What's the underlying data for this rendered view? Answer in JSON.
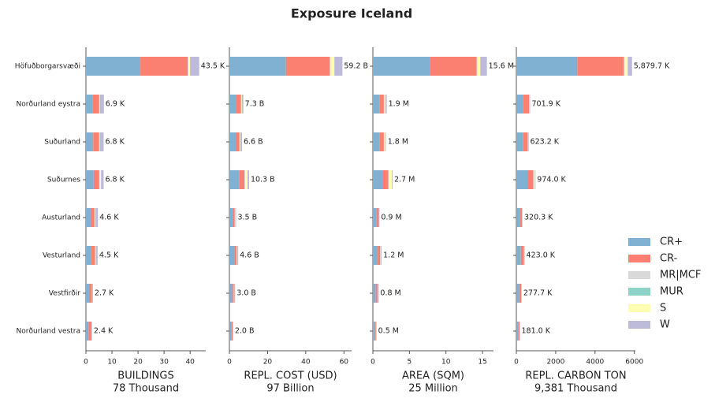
{
  "chart_data": {
    "type": "bar",
    "orientation": "horizontal",
    "stacked": true,
    "title": "Exposure Iceland",
    "legend": "right",
    "categories": [
      "Höfuðborgarsvæði",
      "Norðurland eystra",
      "Suðurland",
      "Suðurnes",
      "Austurland",
      "Vesturland",
      "Vestfirðir",
      "Norðurland vestra"
    ],
    "series": [
      {
        "name": "CR+",
        "color": "#80b1d3"
      },
      {
        "name": "CR-",
        "color": "#fb8072"
      },
      {
        "name": "MR|MCF",
        "color": "#d9d9d9"
      },
      {
        "name": "MUR",
        "color": "#8dd3c7"
      },
      {
        "name": "S",
        "color": "#ffffb3"
      },
      {
        "name": "W",
        "color": "#bebada"
      }
    ],
    "panels": [
      {
        "xlabel": "BUILDINGS",
        "xlabel_total": "78 Thousand",
        "xlim": [
          0,
          46
        ],
        "xticks": [
          0,
          10,
          20,
          30,
          40
        ],
        "series_values": [
          [
            20.9,
            2.7,
            2.8,
            3.0,
            1.8,
            1.9,
            1.2,
            1.0
          ],
          [
            18.2,
            2.4,
            2.2,
            2.1,
            1.5,
            1.6,
            1.1,
            1.1
          ],
          [
            0.3,
            0.2,
            0.2,
            0.3,
            0.2,
            0.2,
            0.1,
            0.1
          ],
          [
            0,
            0,
            0,
            0,
            0,
            0,
            0,
            0
          ],
          [
            0.6,
            0.1,
            0.1,
            0.4,
            0.1,
            0.1,
            0,
            0
          ],
          [
            3.5,
            1.5,
            1.5,
            1.0,
            1.0,
            0.7,
            0.3,
            0.2
          ]
        ],
        "totals": [
          43.5,
          6.9,
          6.8,
          6.8,
          4.6,
          4.5,
          2.7,
          2.4
        ],
        "total_labels": [
          "43.5 K",
          "6.9 K",
          "6.8 K",
          "6.8 K",
          "4.6 K",
          "4.5 K",
          "2.7 K",
          "2.4 K"
        ]
      },
      {
        "xlabel": "REPL. COST (USD)",
        "xlabel_total": "97 Billion",
        "xlim": [
          0,
          64
        ],
        "xticks": [
          0,
          20,
          40,
          60
        ],
        "series_values": [
          [
            29.6,
            3.5,
            3.3,
            5.3,
            1.8,
            2.5,
            1.5,
            1.0
          ],
          [
            23.0,
            2.6,
            2.0,
            2.6,
            1.0,
            1.3,
            0.8,
            0.7
          ],
          [
            0.4,
            0.2,
            0.2,
            0.4,
            0.2,
            0.2,
            0.1,
            0.1
          ],
          [
            0,
            0,
            0,
            0,
            0,
            0,
            0,
            0
          ],
          [
            2.0,
            0.3,
            0.2,
            1.2,
            0.1,
            0.1,
            0.1,
            0
          ],
          [
            4.2,
            0.7,
            0.9,
            0.8,
            0.4,
            0.5,
            0.5,
            0.2
          ]
        ],
        "totals": [
          59.2,
          7.3,
          6.6,
          10.3,
          3.5,
          4.6,
          3.0,
          2.0
        ],
        "total_labels": [
          "59.2 B",
          "7.3 B",
          "6.6 B",
          "10.3 B",
          "3.5 B",
          "4.6 B",
          "3.0 B",
          "2.0 B"
        ]
      },
      {
        "xlabel": "AREA (SQM)",
        "xlabel_total": "25 Million",
        "xlim": [
          0,
          16.5
        ],
        "xticks": [
          0,
          5,
          10,
          15
        ],
        "series_values": [
          [
            7.8,
            0.9,
            0.9,
            1.3,
            0.5,
            0.6,
            0.4,
            0.2
          ],
          [
            6.4,
            0.6,
            0.6,
            0.8,
            0.3,
            0.4,
            0.2,
            0.2
          ],
          [
            0.1,
            0.1,
            0.1,
            0.1,
            0,
            0.1,
            0,
            0
          ],
          [
            0,
            0,
            0,
            0,
            0,
            0,
            0,
            0
          ],
          [
            0.4,
            0.1,
            0.1,
            0.4,
            0,
            0,
            0,
            0
          ],
          [
            0.9,
            0.2,
            0.1,
            0.1,
            0.1,
            0.1,
            0.2,
            0.1
          ]
        ],
        "totals": [
          15.6,
          1.9,
          1.8,
          2.7,
          0.9,
          1.2,
          0.8,
          0.5
        ],
        "total_labels": [
          "15.6 M",
          "1.9 M",
          "1.8 M",
          "2.7 M",
          "0.9 M",
          "1.2 M",
          "0.8 M",
          "0.5 M"
        ]
      },
      {
        "xlabel": "REPL. CARBON TON",
        "xlabel_total": "9,381 Thousand",
        "xlim": [
          0,
          6050
        ],
        "xticks": [
          0,
          2000,
          4000,
          6000
        ],
        "series_values": [
          [
            3100,
            350,
            330,
            560,
            170,
            230,
            150,
            90
          ],
          [
            2350,
            300,
            250,
            300,
            120,
            160,
            100,
            80
          ],
          [
            60,
            10,
            10,
            20,
            10,
            10,
            5,
            5
          ],
          [
            0,
            0,
            0,
            0,
            0,
            0,
            0,
            0
          ],
          [
            150,
            10,
            10,
            60,
            5,
            5,
            5,
            0
          ],
          [
            220,
            30,
            25,
            35,
            15,
            20,
            15,
            6
          ]
        ],
        "totals": [
          5879.7,
          701.9,
          623.2,
          974.0,
          320.3,
          423.0,
          277.7,
          181.0
        ],
        "total_labels": [
          "5,879.7 K",
          "701.9 K",
          "623.2 K",
          "974.0 K",
          "320.3 K",
          "423.0 K",
          "277.7 K",
          "181.0 K"
        ]
      }
    ]
  }
}
